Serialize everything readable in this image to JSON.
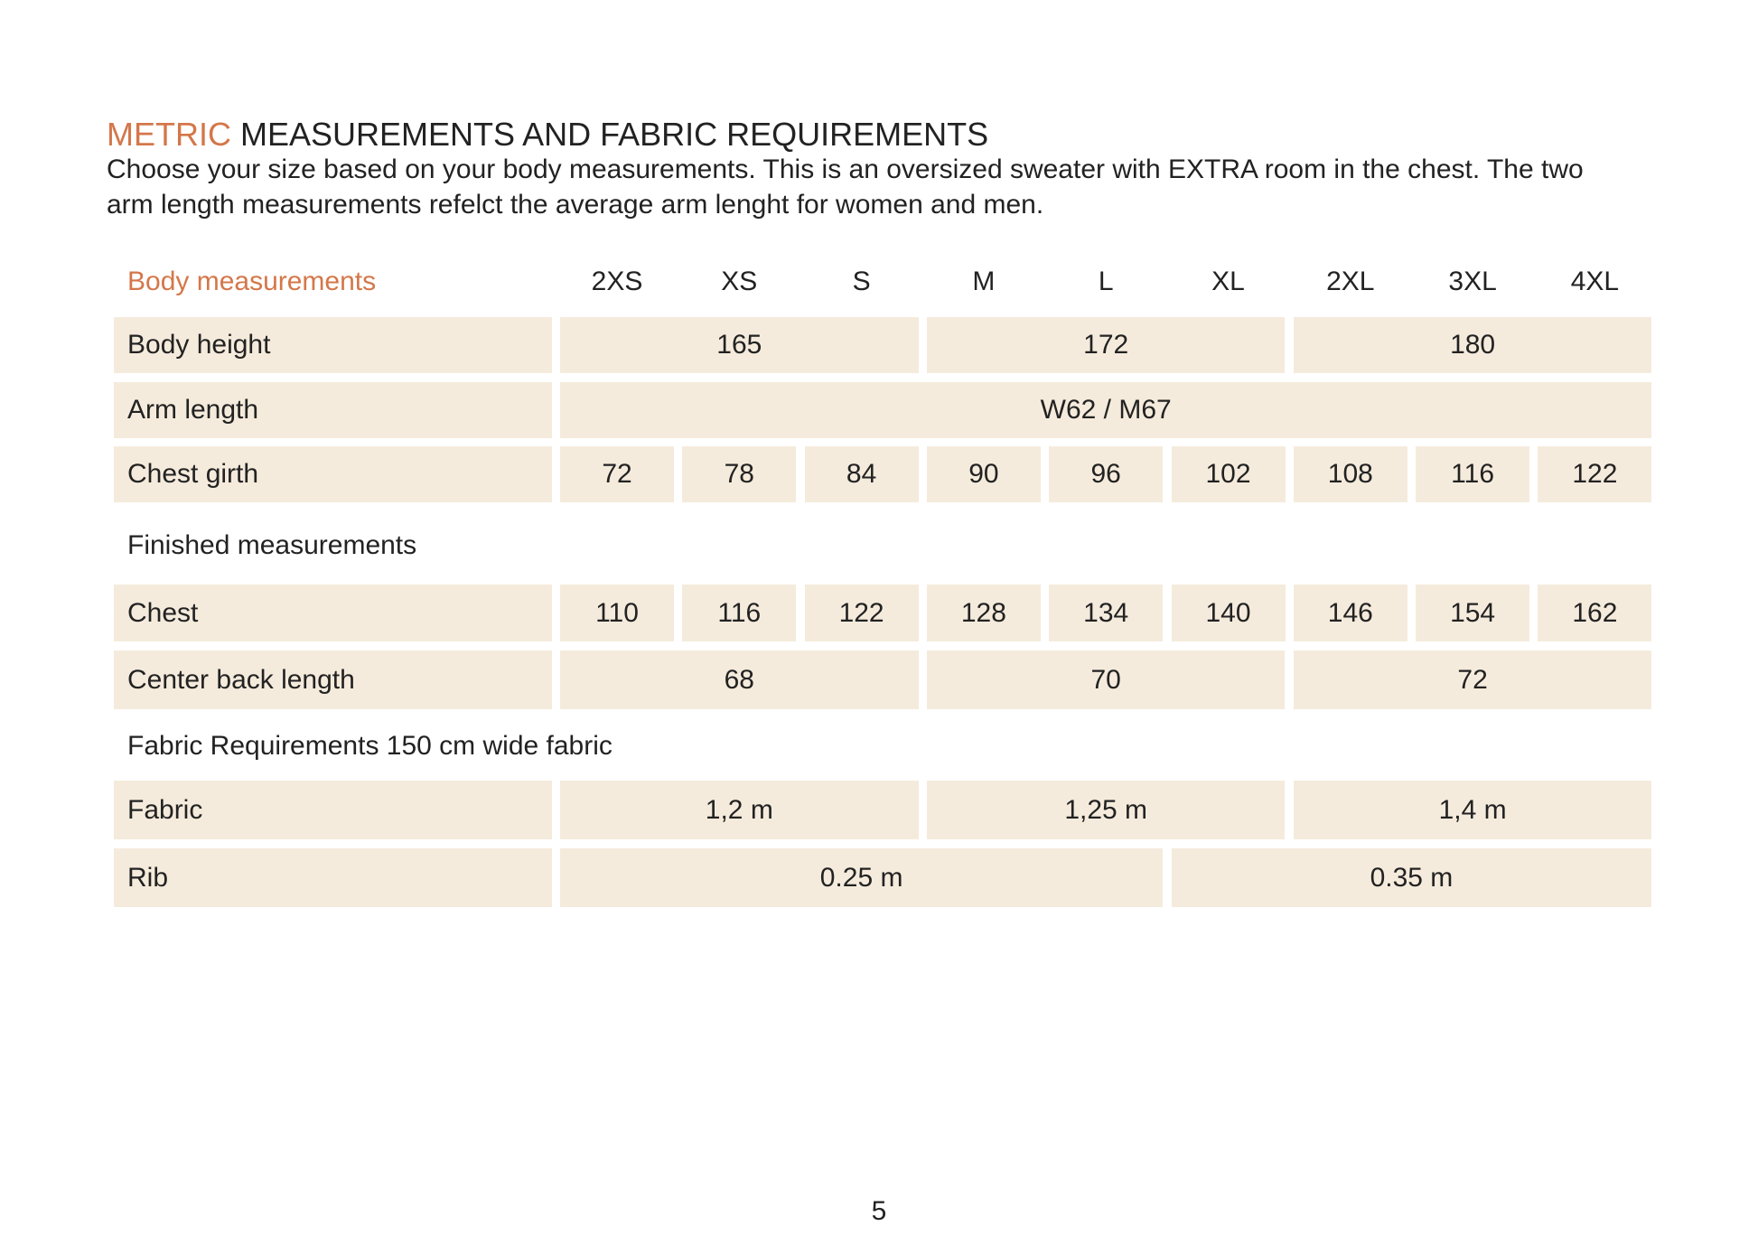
{
  "header": {
    "title_highlight": "METRIC",
    "title": "MEASUREMENTS AND FABRIC REQUIREMENTS",
    "description": [
      "Choose your size based on your body measurements. This is an oversized sweater with EXTRA room in the chest. The two",
      "arm length measurements refelct the average arm lenght for women and men."
    ]
  },
  "table": {
    "header": "Body measurements",
    "sizes": [
      "2XS",
      "XS",
      "S",
      "M",
      "L",
      "XL",
      "2XL",
      "3XL",
      "4XL"
    ],
    "sections": [
      {
        "rows": [
          {
            "label": "Body height",
            "cells": [
              165,
              172,
              180
            ]
          },
          {
            "label": "Arm length",
            "cells": [
              "W62  /  M67"
            ]
          },
          {
            "label": "Chest girth",
            "cells": [
              72,
              78,
              84,
              90,
              96,
              102,
              108,
              116,
              122
            ]
          }
        ]
      },
      {
        "title": "Finished measurements",
        "rows": [
          {
            "label": "Chest",
            "cells": [
              110,
              116,
              122,
              128,
              134,
              140,
              146,
              154,
              162
            ]
          },
          {
            "label": "Center back length",
            "cells": [
              68,
              70,
              72
            ]
          }
        ]
      },
      {
        "title": "Fabric Requirements 150 cm wide fabric",
        "rows": [
          {
            "label": "Fabric",
            "cells": [
              "1,2 m",
              "1,25 m",
              "1,4 m"
            ]
          },
          {
            "label": "Rib",
            "cells": [
              "0.25 m",
              "0.35 m"
            ]
          }
        ]
      }
    ]
  },
  "page_number": 5
}
